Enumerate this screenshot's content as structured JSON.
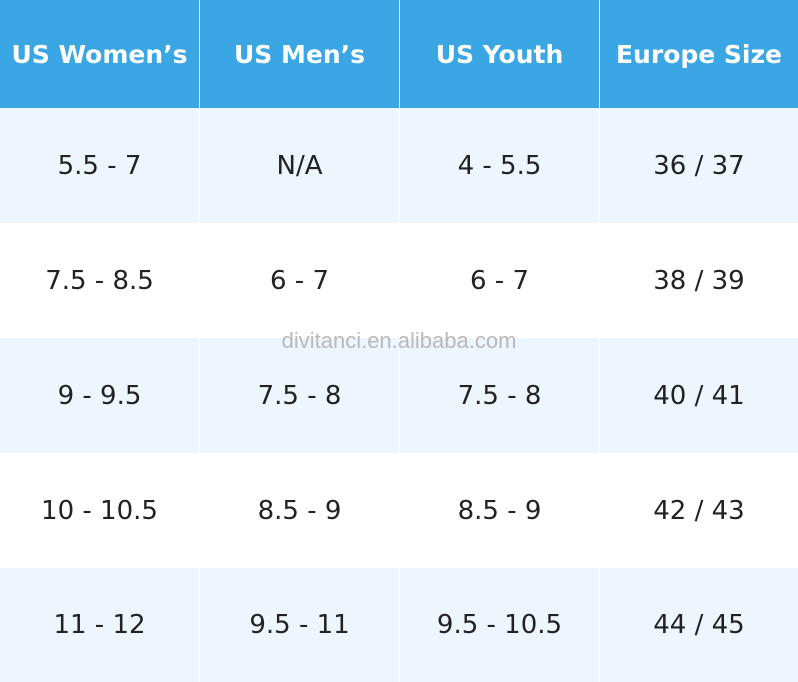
{
  "table": {
    "headers": [
      "US Women’s",
      "US Men’s",
      "US Youth",
      "Europe Size"
    ],
    "rows": [
      [
        "5.5 - 7",
        "N/A",
        "4 - 5.5",
        "36 / 37"
      ],
      [
        "7.5 - 8.5",
        "6 - 7",
        "6 - 7",
        "38 / 39"
      ],
      [
        "9 - 9.5",
        "7.5 - 8",
        "7.5 - 8",
        "40 / 41"
      ],
      [
        "10 - 10.5",
        "8.5 - 9",
        "8.5 - 9",
        "42 / 43"
      ],
      [
        "11 - 12",
        "9.5 - 11",
        "9.5 - 10.5",
        "44 / 45"
      ]
    ]
  },
  "watermark": "divitanci.en.alibaba.com",
  "colors": {
    "header_bg": "#3ba6e4",
    "header_text": "#ffffff",
    "row_tint": "#edf6fc",
    "row_light": "#ffffff"
  }
}
